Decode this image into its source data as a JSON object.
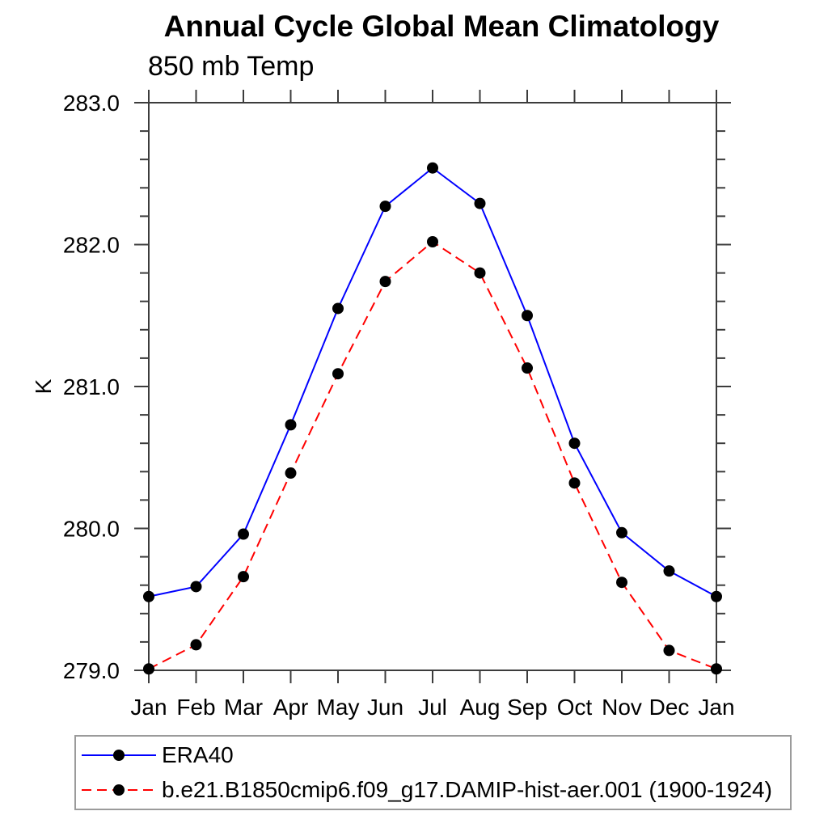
{
  "title": "Annual Cycle Global Mean Climatology",
  "subtitle": "850 mb Temp",
  "colors": {
    "background": "#ffffff",
    "axis": "#3c3c3c",
    "text": "#000000",
    "legend_border": "#9b9b9b",
    "series_blue": "#0000ff",
    "series_red": "#ff0000",
    "marker": "#000000"
  },
  "chart_data": {
    "type": "line",
    "title": "Annual Cycle Global Mean Climatology",
    "subtitle": "850 mb Temp",
    "xlabel": "",
    "ylabel": "K",
    "ylim": [
      279.0,
      283.0
    ],
    "ytick_major": [
      279.0,
      280.0,
      281.0,
      282.0,
      283.0
    ],
    "ytick_major_labels": [
      "279.0",
      "280.0",
      "281.0",
      "282.0",
      "283.0"
    ],
    "ytick_minor_interval": 0.2,
    "grid": false,
    "legend_position": "bottom-left-box",
    "x_categories": [
      "Jan",
      "Feb",
      "Mar",
      "Apr",
      "May",
      "Jun",
      "Jul",
      "Aug",
      "Sep",
      "Oct",
      "Nov",
      "Dec",
      "Jan"
    ],
    "series": [
      {
        "name": "ERA40",
        "color": "#0000ff",
        "line_style": "solid",
        "marker": "filled-circle",
        "marker_color": "#000000",
        "values": [
          279.52,
          279.59,
          279.96,
          280.73,
          281.55,
          282.27,
          282.54,
          282.29,
          281.5,
          280.6,
          279.97,
          279.7,
          279.52
        ]
      },
      {
        "name": "b.e21.B1850cmip6.f09_g17.DAMIP-hist-aer.001 (1900-1924)",
        "color": "#ff0000",
        "line_style": "dashed",
        "marker": "filled-circle",
        "marker_color": "#000000",
        "values": [
          279.01,
          279.18,
          279.66,
          280.39,
          281.09,
          281.74,
          282.02,
          281.8,
          281.13,
          280.32,
          279.62,
          279.14,
          279.01
        ]
      }
    ]
  }
}
